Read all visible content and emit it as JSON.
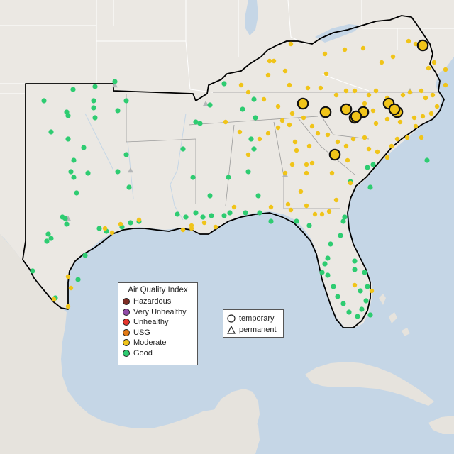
{
  "legend_aqi": {
    "title": "Air Quality Index",
    "categories": [
      {
        "label": "Hazardous",
        "color": "#7e2d24"
      },
      {
        "label": "Very Unhealthy",
        "color": "#8f4ba6"
      },
      {
        "label": "Unhealthy",
        "color": "#e4352c"
      },
      {
        "label": "USG",
        "color": "#e27a16"
      },
      {
        "label": "Moderate",
        "color": "#f0c419"
      },
      {
        "label": "Good",
        "color": "#2ecc71"
      }
    ]
  },
  "legend_monitor": {
    "temporary_label": "temporary",
    "temporary_icon": "circle-icon",
    "permanent_label": "permanent",
    "permanent_icon": "triangle-icon"
  },
  "colors": {
    "land": "#ebe8e3",
    "water": "#c5d6e6",
    "region_outline": "#000000",
    "state_borders": "#ffffff",
    "inactive_monitor": "#b4b6b8"
  },
  "monitors_summary": {
    "large_moderate_temporary": 11,
    "levels_present": [
      "Good",
      "Moderate"
    ]
  }
}
